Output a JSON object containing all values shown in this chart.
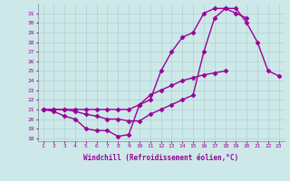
{
  "xlabel": "Windchill (Refroidissement éolien,°C)",
  "background_color": "#cde8e8",
  "line_color": "#990099",
  "hours": [
    1,
    2,
    3,
    4,
    5,
    6,
    7,
    8,
    9,
    10,
    11,
    12,
    13,
    14,
    15,
    16,
    17,
    18,
    19,
    20,
    21,
    22,
    23
  ],
  "line1": [
    21.0,
    20.8,
    20.3,
    20.0,
    19.0,
    18.8,
    18.8,
    18.2,
    18.4,
    21.5,
    22.5,
    23.0,
    23.5,
    24.0,
    24.3,
    24.6,
    24.8,
    25.0,
    null,
    null,
    null,
    null,
    null
  ],
  "line2": [
    21.0,
    21.0,
    21.0,
    20.8,
    20.5,
    20.3,
    20.0,
    20.0,
    19.8,
    19.8,
    20.5,
    21.0,
    21.5,
    22.0,
    22.5,
    27.0,
    30.5,
    31.5,
    31.0,
    30.5,
    null,
    null,
    null
  ],
  "line3": [
    21.0,
    21.0,
    21.0,
    21.0,
    21.0,
    21.0,
    21.0,
    21.0,
    21.0,
    21.5,
    22.0,
    25.0,
    27.0,
    28.5,
    29.0,
    31.0,
    31.5,
    31.5,
    31.5,
    30.0,
    28.0,
    25.0,
    24.5
  ],
  "ylim": [
    18,
    32
  ],
  "yticks": [
    18,
    19,
    20,
    21,
    22,
    23,
    24,
    25,
    26,
    27,
    28,
    29,
    30,
    31
  ],
  "marker": "D",
  "marker_size": 2.5,
  "line_width": 1.0
}
